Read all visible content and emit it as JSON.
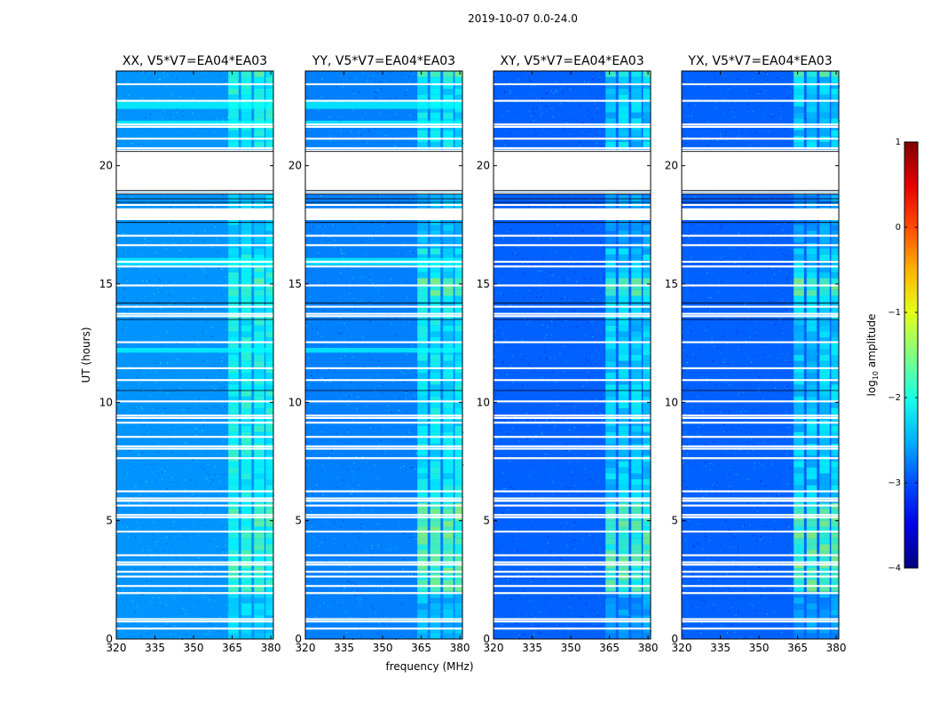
{
  "figure_title": "2019-10-07 0.0-24.0",
  "chart_data": {
    "type": "heatmap",
    "title": "2019-10-07 0.0-24.0",
    "xlabel": "frequency (MHz)",
    "ylabel": "UT (hours)",
    "xlim": [
      320,
      381
    ],
    "ylim": [
      0,
      24
    ],
    "xticks": [
      320,
      335,
      350,
      365,
      380
    ],
    "yticks": [
      0,
      5,
      10,
      15,
      20
    ],
    "panels": [
      {
        "title": "XX, V5*V7=EA04*EA03",
        "polarization": "XX",
        "background_level": -2.65,
        "rfi_level": -1.9
      },
      {
        "title": "YY, V5*V7=EA04*EA03",
        "polarization": "YY",
        "background_level": -2.75,
        "rfi_level": -1.7
      },
      {
        "title": "XY, V5*V7=EA04*EA03",
        "polarization": "XY",
        "background_level": -2.9,
        "rfi_level": -1.8
      },
      {
        "title": "YX, V5*V7=EA04*EA03",
        "polarization": "YX",
        "background_level": -2.9,
        "rfi_level": -1.7
      }
    ],
    "rfi_band_mhz": [
      [
        363.5,
        367.5
      ],
      [
        368.5,
        372.5
      ],
      [
        373.5,
        377.5
      ],
      [
        378,
        381
      ]
    ],
    "strong_rfi_ut_hours": [
      [
        2.0,
        5.7
      ],
      [
        14.3,
        15.1
      ],
      [
        23.6,
        24.0
      ]
    ],
    "flagged_ut_hours": [
      [
        18.9,
        20.6
      ],
      [
        17.7,
        18.2
      ]
    ],
    "colorbar": {
      "label": "log",
      "label_subscript": "10",
      "label_suffix": " amplitude",
      "min": -4,
      "max": 1,
      "ticks": [
        -4,
        -3,
        -2,
        -1,
        0,
        1
      ],
      "tick_labels": [
        "−4",
        "−3",
        "−2",
        "−1",
        "0",
        "1"
      ],
      "colormap": "jet"
    }
  }
}
